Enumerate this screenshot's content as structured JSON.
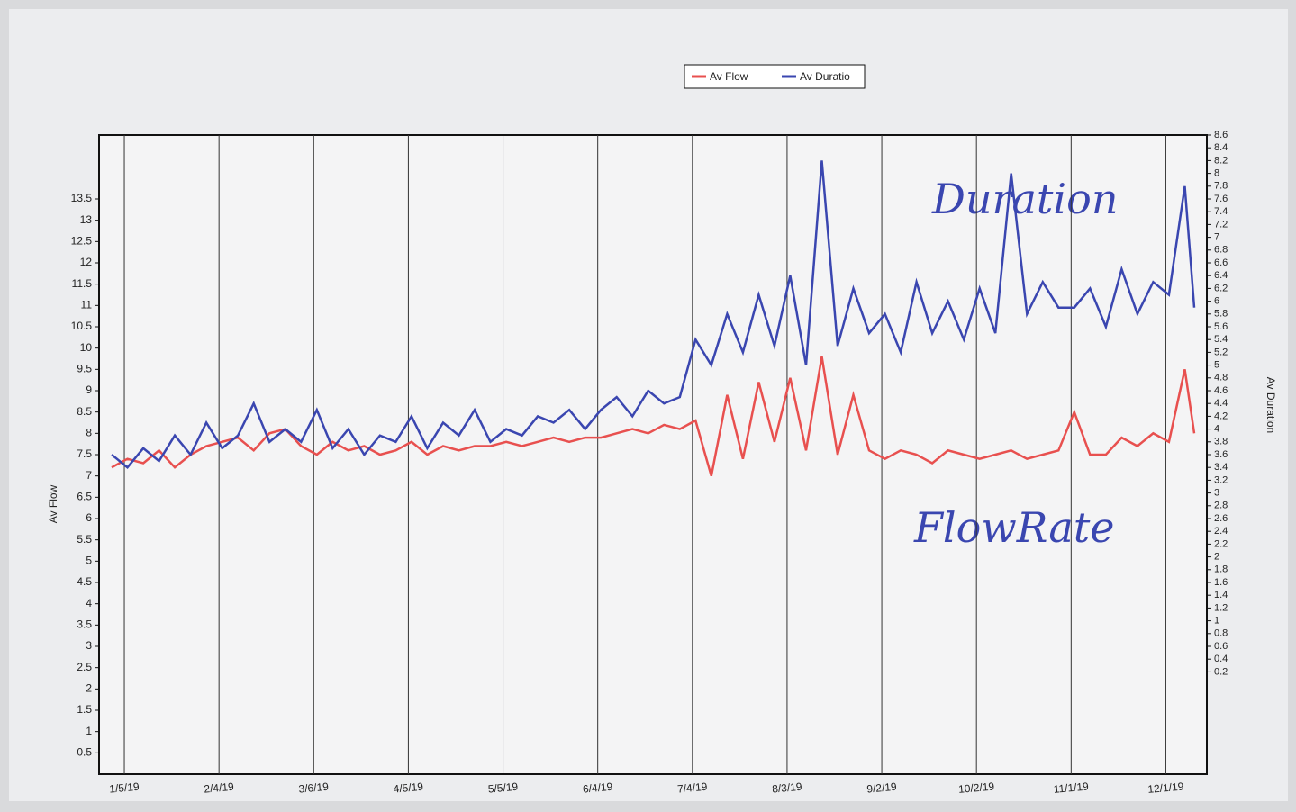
{
  "chart_data": {
    "type": "line",
    "legend_position": "top",
    "grid": true,
    "x_label_rotation": -5,
    "y_label": "Av Flow",
    "y2_label": "Av Duration",
    "annotations": [
      "Duration",
      "FlowRate"
    ],
    "x": [
      "1/1/19",
      "1/6/19",
      "1/11/19",
      "1/16/19",
      "1/21/19",
      "1/26/19",
      "1/31/19",
      "2/5/19",
      "2/10/19",
      "2/15/19",
      "2/20/19",
      "2/25/19",
      "3/2/19",
      "3/7/19",
      "3/12/19",
      "3/17/19",
      "3/22/19",
      "3/27/19",
      "4/1/19",
      "4/6/19",
      "4/11/19",
      "4/16/19",
      "4/21/19",
      "4/26/19",
      "5/1/19",
      "5/6/19",
      "5/11/19",
      "5/16/19",
      "5/21/19",
      "5/26/19",
      "5/31/19",
      "6/5/19",
      "6/10/19",
      "6/15/19",
      "6/20/19",
      "6/25/19",
      "6/30/19",
      "7/5/19",
      "7/10/19",
      "7/15/19",
      "7/20/19",
      "7/25/19",
      "7/30/19",
      "8/4/19",
      "8/9/19",
      "8/14/19",
      "8/19/19",
      "8/24/19",
      "8/29/19",
      "9/3/19",
      "9/8/19",
      "9/13/19",
      "9/18/19",
      "9/23/19",
      "9/28/19",
      "10/3/19",
      "10/8/19",
      "10/13/19",
      "10/18/19",
      "10/23/19",
      "10/28/19",
      "11/2/19",
      "11/7/19",
      "11/12/19",
      "11/17/19",
      "11/22/19",
      "11/27/19",
      "12/2/19",
      "12/7/19",
      "12/10/19"
    ],
    "xlim": [
      "12/28/18",
      "12/14/19"
    ],
    "xticks": [
      "1/5/19",
      "2/4/19",
      "3/6/19",
      "4/5/19",
      "5/5/19",
      "6/4/19",
      "7/4/19",
      "8/3/19",
      "9/2/19",
      "10/2/19",
      "11/1/19",
      "12/1/19"
    ],
    "ylim": [
      0,
      15
    ],
    "yticks": [
      0.5,
      1,
      1.5,
      2,
      2.5,
      3,
      3.5,
      4,
      4.5,
      5,
      5.5,
      6,
      6.5,
      7,
      7.5,
      8,
      8.5,
      9,
      9.5,
      10,
      10.5,
      11,
      11.5,
      12,
      12.5,
      13,
      13.5
    ],
    "y2lim": [
      -1.4,
      8.6
    ],
    "y2ticks": [
      0.2,
      0.4,
      0.6,
      0.8,
      1,
      1.2,
      1.4,
      1.6,
      1.8,
      2,
      2.2,
      2.4,
      2.6,
      2.8,
      3,
      3.2,
      3.4,
      3.6,
      3.8,
      4,
      4.2,
      4.4,
      4.6,
      4.8,
      5,
      5.2,
      5.4,
      5.6,
      5.8,
      6,
      6.2,
      6.4,
      6.6,
      6.8,
      7,
      7.2,
      7.4,
      7.6,
      7.8,
      8,
      8.2,
      8.4,
      8.6
    ],
    "series": [
      {
        "name": "Av Flow",
        "color": "#e8504f",
        "axis": "y",
        "values": [
          7.2,
          7.4,
          7.3,
          7.6,
          7.2,
          7.5,
          7.7,
          7.8,
          7.9,
          7.6,
          8.0,
          8.1,
          7.7,
          7.5,
          7.8,
          7.6,
          7.7,
          7.5,
          7.6,
          7.8,
          7.5,
          7.7,
          7.6,
          7.7,
          7.7,
          7.8,
          7.7,
          7.8,
          7.9,
          7.8,
          7.9,
          7.9,
          8.0,
          8.1,
          8.0,
          8.2,
          8.1,
          8.3,
          7.0,
          8.9,
          7.4,
          9.2,
          7.8,
          9.3,
          7.6,
          9.8,
          7.5,
          8.9,
          7.6,
          7.4,
          7.6,
          7.5,
          7.3,
          7.6,
          7.5,
          7.4,
          7.5,
          7.6,
          7.4,
          7.5,
          7.6,
          8.5,
          7.5,
          7.5,
          7.9,
          7.7,
          8.0,
          7.8,
          9.5,
          8.0
        ]
      },
      {
        "name": "Av Duratio",
        "color": "#3a46b0",
        "axis": "y2",
        "values": [
          3.6,
          3.4,
          3.7,
          3.5,
          3.9,
          3.6,
          4.1,
          3.7,
          3.9,
          4.4,
          3.8,
          4.0,
          3.8,
          4.3,
          3.7,
          4.0,
          3.6,
          3.9,
          3.8,
          4.2,
          3.7,
          4.1,
          3.9,
          4.3,
          3.8,
          4.0,
          3.9,
          4.2,
          4.1,
          4.3,
          4.0,
          4.3,
          4.5,
          4.2,
          4.6,
          4.4,
          4.5,
          5.4,
          5.0,
          5.8,
          5.2,
          6.1,
          5.3,
          6.4,
          5.0,
          8.2,
          5.3,
          6.2,
          5.5,
          5.8,
          5.2,
          6.3,
          5.5,
          6.0,
          5.4,
          6.2,
          5.5,
          8.0,
          5.8,
          6.3,
          5.9,
          5.9,
          6.2,
          5.6,
          6.5,
          5.8,
          6.3,
          6.1,
          7.8,
          5.9
        ]
      }
    ]
  }
}
